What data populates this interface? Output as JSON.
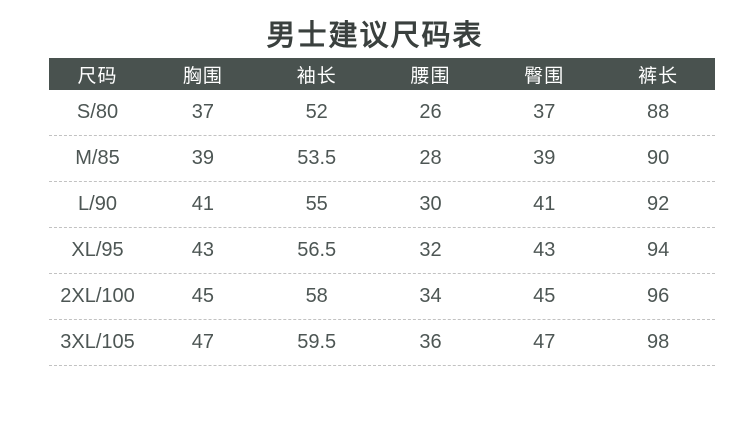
{
  "title": "男士建议尺码表",
  "table": {
    "headers": [
      "尺码",
      "胸围",
      "袖长",
      "腰围",
      "臀围",
      "裤长"
    ],
    "rows": [
      [
        "S/80",
        "37",
        "52",
        "26",
        "37",
        "88"
      ],
      [
        "M/85",
        "39",
        "53.5",
        "28",
        "39",
        "90"
      ],
      [
        "L/90",
        "41",
        "55",
        "30",
        "41",
        "92"
      ],
      [
        "XL/95",
        "43",
        "56.5",
        "32",
        "43",
        "94"
      ],
      [
        "2XL/100",
        "45",
        "58",
        "34",
        "45",
        "96"
      ],
      [
        "3XL/105",
        "47",
        "59.5",
        "36",
        "47",
        "98"
      ]
    ]
  },
  "chart_data": {
    "type": "table",
    "title": "男士建议尺码表",
    "columns": [
      "尺码",
      "胸围",
      "袖长",
      "腰围",
      "臀围",
      "裤长"
    ],
    "rows": [
      {
        "尺码": "S/80",
        "胸围": 37,
        "袖长": 52,
        "腰围": 26,
        "臀围": 37,
        "裤长": 88
      },
      {
        "尺码": "M/85",
        "胸围": 39,
        "袖长": 53.5,
        "腰围": 28,
        "臀围": 39,
        "裤长": 90
      },
      {
        "尺码": "L/90",
        "胸围": 41,
        "袖长": 55,
        "腰围": 30,
        "臀围": 41,
        "裤长": 92
      },
      {
        "尺码": "XL/95",
        "胸围": 43,
        "袖长": 56.5,
        "腰围": 32,
        "臀围": 43,
        "裤长": 94
      },
      {
        "尺码": "2XL/100",
        "胸围": 45,
        "袖长": 58,
        "腰围": 34,
        "臀围": 45,
        "裤长": 96
      },
      {
        "尺码": "3XL/105",
        "胸围": 47,
        "袖长": 59.5,
        "腰围": 36,
        "臀围": 47,
        "裤长": 98
      }
    ]
  },
  "colors": {
    "header_bg": "#49524f",
    "header_text": "#ffffff",
    "body_text": "#4d5654",
    "title_text": "#3a403e",
    "divider": "#c2c2c2",
    "page_bg": "#ffffff"
  }
}
